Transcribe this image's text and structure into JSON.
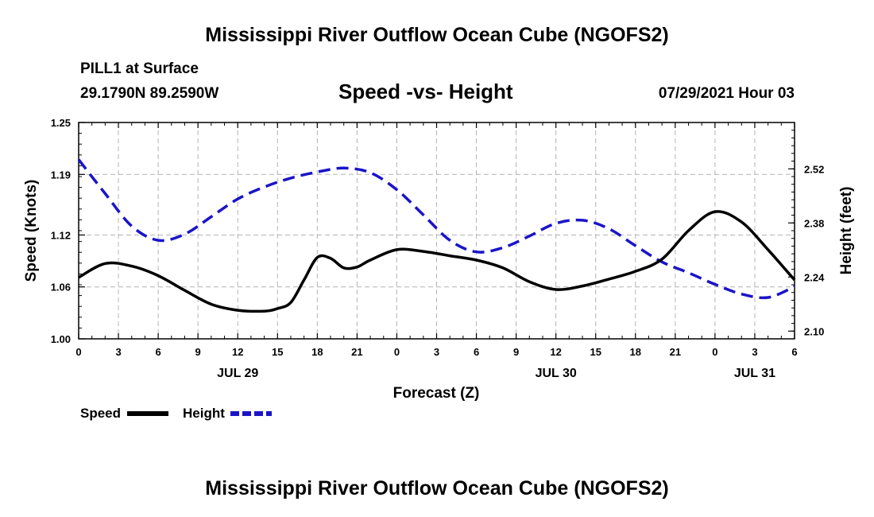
{
  "header": {
    "title_top": "Mississippi River Outflow Ocean Cube (NGOFS2)",
    "station": "PILL1 at Surface",
    "location": "29.1790N  89.2590W",
    "chart_title": "Speed -vs- Height",
    "datetime": "07/29/2021 Hour 03"
  },
  "footer": {
    "title_bottom": "Mississippi River Outflow Ocean Cube (NGOFS2)"
  },
  "legend": {
    "speed_label": "Speed",
    "height_label": "Height"
  },
  "chart_data": {
    "type": "line",
    "title": "Speed -vs- Height",
    "xlabel": "Forecast (Z)",
    "ylabel": "Speed (Knots)",
    "y2label": "Height (feet)",
    "x_ticks": [
      "0",
      "3",
      "6",
      "9",
      "12",
      "15",
      "18",
      "21",
      "0",
      "3",
      "6",
      "9",
      "12",
      "15",
      "18",
      "21",
      "0",
      "3",
      "6"
    ],
    "x_hours_range": [
      0,
      54
    ],
    "date_labels": [
      {
        "label": "JUL 29",
        "hour": 12
      },
      {
        "label": "JUL 30",
        "hour": 36
      },
      {
        "label": "JUL 31",
        "hour": 51
      }
    ],
    "ylim": [
      1.0,
      1.25
    ],
    "y_ticks": [
      "1.00",
      "1.06",
      "1.12",
      "1.19",
      "1.25"
    ],
    "y2lim": [
      2.08,
      2.64
    ],
    "y2_ticks": [
      "2.10",
      "2.24",
      "2.38",
      "2.52"
    ],
    "grid": true,
    "legend_position": "bottom-left",
    "series": [
      {
        "name": "Speed",
        "axis": "left",
        "color": "#000000",
        "style": "solid",
        "x": [
          0,
          2,
          4,
          6,
          8,
          10,
          12,
          14,
          15,
          16,
          17,
          18,
          19,
          20,
          21,
          22,
          24,
          26,
          28,
          30,
          32,
          34,
          36,
          38,
          40,
          42,
          44,
          46,
          48,
          50,
          52,
          54
        ],
        "values": [
          1.071,
          1.087,
          1.084,
          1.073,
          1.056,
          1.04,
          1.033,
          1.032,
          1.035,
          1.042,
          1.068,
          1.094,
          1.093,
          1.082,
          1.083,
          1.091,
          1.103,
          1.101,
          1.096,
          1.091,
          1.082,
          1.066,
          1.057,
          1.061,
          1.069,
          1.078,
          1.092,
          1.125,
          1.147,
          1.135,
          1.103,
          1.068
        ]
      },
      {
        "name": "Height",
        "axis": "right",
        "color": "#1a14c8",
        "style": "dashed",
        "x": [
          0,
          2,
          4,
          6,
          8,
          10,
          12,
          14,
          16,
          18,
          20,
          22,
          24,
          26,
          28,
          30,
          32,
          34,
          36,
          38,
          40,
          42,
          44,
          46,
          48,
          50,
          52,
          54
        ],
        "values": [
          2.544,
          2.456,
          2.372,
          2.335,
          2.351,
          2.396,
          2.442,
          2.473,
          2.496,
          2.512,
          2.522,
          2.51,
          2.466,
          2.401,
          2.335,
          2.305,
          2.316,
          2.346,
          2.379,
          2.387,
          2.365,
          2.321,
          2.279,
          2.251,
          2.221,
          2.196,
          2.187,
          2.215
        ]
      }
    ]
  }
}
